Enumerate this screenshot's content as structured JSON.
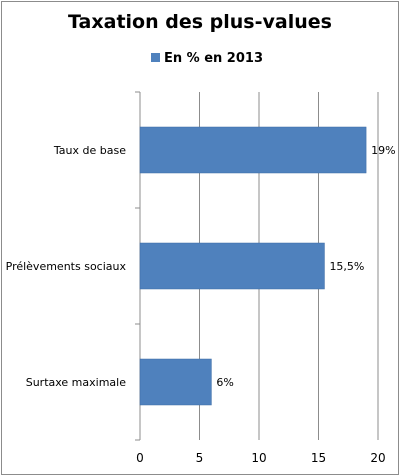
{
  "chart_data": {
    "type": "bar",
    "orientation": "horizontal",
    "title": "Taxation des plus-values",
    "categories": [
      "Taux de base",
      "Prélèvements sociaux",
      "Surtaxe maximale"
    ],
    "series": [
      {
        "name": "En % en 2013",
        "values": [
          19,
          15.5,
          6
        ],
        "labels": [
          "19%",
          "15,5%",
          "6%"
        ],
        "color": "#4f81bd"
      }
    ],
    "xlim": [
      0,
      20
    ],
    "xticks": [
      "0",
      "5",
      "10",
      "15",
      "20"
    ],
    "grid": true,
    "legend_position": "top"
  }
}
